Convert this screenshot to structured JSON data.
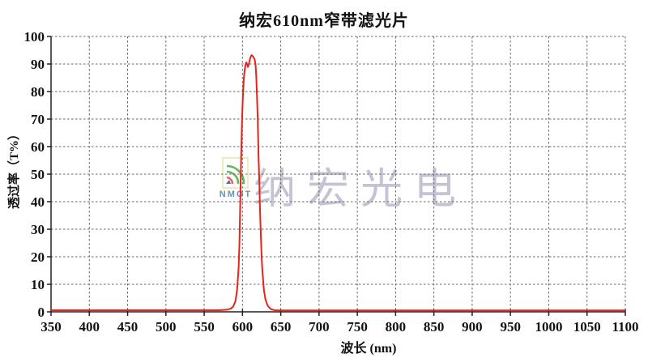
{
  "title": "纳宏610nm窄带滤光片",
  "watermark": {
    "logo_text": "NMOT",
    "company": "纳宏光电"
  },
  "colors": {
    "curve_red": "#e8231d",
    "grid_gray": "#666666",
    "axis_black": "#222222",
    "watermark_text": "#c5c2d3",
    "logo_border_yellow": "#e9d98e",
    "logo_green": "#33a02c",
    "logo_red": "#d63a2f",
    "logo_navy": "#1a3a6b",
    "nmot_blue": "#47788f"
  },
  "chart_data": {
    "type": "line",
    "title": "纳宏610nm窄带滤光片",
    "xlabel": "波长 (nm)",
    "ylabel": "透过率（T%）",
    "xlim": [
      350,
      1100
    ],
    "ylim": [
      0,
      100
    ],
    "x_tick_step": 50,
    "y_tick_step": 10,
    "grid": true,
    "legend": "none",
    "series": [
      {
        "name": "透过率",
        "color": "#e8231d",
        "points": [
          [
            350,
            0.6
          ],
          [
            400,
            0.6
          ],
          [
            450,
            0.6
          ],
          [
            500,
            0.6
          ],
          [
            550,
            0.6
          ],
          [
            570,
            0.6
          ],
          [
            580,
            0.8
          ],
          [
            585,
            1.2
          ],
          [
            588,
            2
          ],
          [
            591,
            4
          ],
          [
            593,
            8
          ],
          [
            595,
            16
          ],
          [
            596,
            25
          ],
          [
            597,
            38
          ],
          [
            598,
            52
          ],
          [
            599,
            65
          ],
          [
            600,
            74
          ],
          [
            601,
            81
          ],
          [
            602,
            85.5
          ],
          [
            603,
            88
          ],
          [
            604,
            89.8
          ],
          [
            605,
            90.6
          ],
          [
            606,
            90
          ],
          [
            607,
            88.9
          ],
          [
            608,
            89.5
          ],
          [
            609,
            90.8
          ],
          [
            610,
            92
          ],
          [
            611,
            92.8
          ],
          [
            612,
            93.2
          ],
          [
            613,
            93
          ],
          [
            614,
            92.6
          ],
          [
            615,
            92.2
          ],
          [
            616,
            91.5
          ],
          [
            617,
            90
          ],
          [
            618,
            86
          ],
          [
            619,
            78
          ],
          [
            620,
            70
          ],
          [
            621,
            56
          ],
          [
            622,
            48
          ],
          [
            623,
            36
          ],
          [
            624,
            28
          ],
          [
            625,
            20
          ],
          [
            626,
            15
          ],
          [
            628,
            8
          ],
          [
            630,
            4.5
          ],
          [
            633,
            2.2
          ],
          [
            637,
            1
          ],
          [
            642,
            0.6
          ],
          [
            650,
            0.5
          ],
          [
            700,
            0.5
          ],
          [
            750,
            0.5
          ],
          [
            800,
            0.5
          ],
          [
            850,
            0.5
          ],
          [
            900,
            0.5
          ],
          [
            950,
            0.5
          ],
          [
            1000,
            0.5
          ],
          [
            1050,
            0.5
          ],
          [
            1100,
            0.5
          ]
        ]
      }
    ]
  }
}
